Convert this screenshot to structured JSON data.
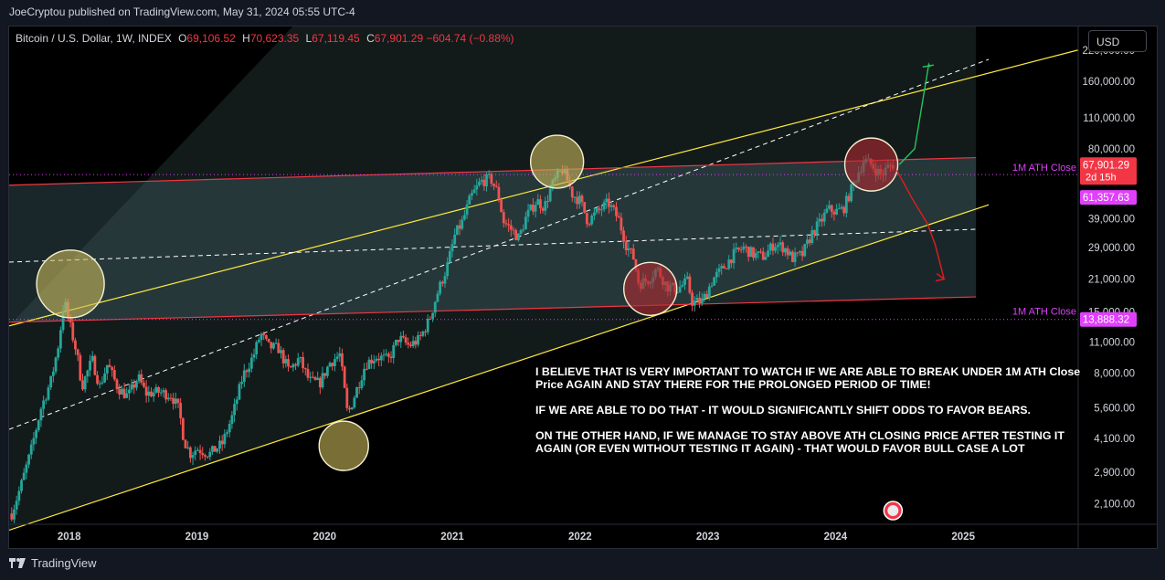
{
  "header": {
    "published_by": "JoeCryptou published on TradingView.com, May 31, 2024 05:55 UTC-4"
  },
  "legend": {
    "symbol": "Bitcoin / U.S. Dollar, 1W, INDEX",
    "o_label": "O",
    "o_value": "69,106.52",
    "h_label": "H",
    "h_value": "70,623.35",
    "l_label": "L",
    "l_value": "67,119.45",
    "c_label": "C",
    "c_value": "67,901.29",
    "change": "−604.74 (−0.88%)"
  },
  "currency_button": "USD",
  "price_tags": {
    "current_price": "67,901.29",
    "countdown": "2d 15h",
    "upper_ath": "61,357.63",
    "lower_ath": "13,888.32"
  },
  "annotation_labels": {
    "upper": "1M ATH Close",
    "lower": "1M ATH Close"
  },
  "note": {
    "para1": "I BELIEVE THAT IS VERY IMPORTANT TO WATCH IF WE ARE ABLE TO BREAK UNDER 1M ATH Close Price AGAIN AND STAY THERE FOR THE PROLONGED PERIOD OF TIME!",
    "para2": "IF WE ARE ABLE TO DO THAT - IT WOULD SIGNIFICANTLY SHIFT ODDS TO FAVOR BEARS.",
    "para3": "ON THE OTHER HAND, IF WE MANAGE TO STAY ABOVE ATH CLOSING PRICE AFTER TESTING IT AGAIN (OR EVEN WITHOUT TESTING IT AGAIN) - THAT WOULD FAVOR BULL CASE A LOT"
  },
  "footer": {
    "brand": "TradingView"
  },
  "colors": {
    "up": "#26a69a",
    "down": "#ef5350",
    "channel": "#ffeb3b",
    "resistance": "#f23645",
    "ath_line": "#e040fb",
    "bull_path": "#22c55e",
    "bear_path": "#e11d1d"
  },
  "chart_data": {
    "type": "candlestick",
    "title": "Bitcoin / U.S. Dollar, 1W, INDEX",
    "scale": "log",
    "ylim": [
      1700,
      280000
    ],
    "y_ticks": [
      "2,100.00",
      "2,900.00",
      "4,100.00",
      "5,600.00",
      "8,000.00",
      "11,000.00",
      "15,000.00",
      "21,000.00",
      "29,000.00",
      "39,000.00",
      "80,000.00",
      "110,000.00",
      "160,000.00",
      "220,000.00"
    ],
    "y_tick_values": [
      2100,
      2900,
      4100,
      5600,
      8000,
      11000,
      15000,
      21000,
      29000,
      39000,
      80000,
      110000,
      160000,
      220000
    ],
    "x_ticks": [
      "2018",
      "2019",
      "2020",
      "2021",
      "2022",
      "2023",
      "2024",
      "2025"
    ],
    "x_tick_values": [
      2018,
      2019,
      2020,
      2021,
      2022,
      2023,
      2024,
      2025
    ],
    "xlim": [
      2017.53,
      2025.9
    ],
    "price_path": [
      [
        2017.55,
        1900
      ],
      [
        2017.62,
        2500
      ],
      [
        2017.7,
        3600
      ],
      [
        2017.78,
        5600
      ],
      [
        2017.86,
        7500
      ],
      [
        2017.92,
        11000
      ],
      [
        2017.96,
        17000
      ],
      [
        2018.0,
        13500
      ],
      [
        2018.06,
        9800
      ],
      [
        2018.1,
        7000
      ],
      [
        2018.18,
        9200
      ],
      [
        2018.24,
        7000
      ],
      [
        2018.3,
        8800
      ],
      [
        2018.38,
        6900
      ],
      [
        2018.46,
        6300
      ],
      [
        2018.54,
        7700
      ],
      [
        2018.6,
        6500
      ],
      [
        2018.7,
        6600
      ],
      [
        2018.8,
        6400
      ],
      [
        2018.86,
        5500
      ],
      [
        2018.9,
        4000
      ],
      [
        2018.95,
        3500
      ],
      [
        2019.0,
        3700
      ],
      [
        2019.1,
        3500
      ],
      [
        2019.2,
        3900
      ],
      [
        2019.28,
        5200
      ],
      [
        2019.36,
        7800
      ],
      [
        2019.44,
        9500
      ],
      [
        2019.5,
        12000
      ],
      [
        2019.56,
        10500
      ],
      [
        2019.64,
        10300
      ],
      [
        2019.72,
        8200
      ],
      [
        2019.8,
        9300
      ],
      [
        2019.88,
        7400
      ],
      [
        2019.96,
        7200
      ],
      [
        2020.04,
        8900
      ],
      [
        2020.12,
        9700
      ],
      [
        2020.18,
        5200
      ],
      [
        2020.24,
        6500
      ],
      [
        2020.32,
        8800
      ],
      [
        2020.4,
        9500
      ],
      [
        2020.5,
        9200
      ],
      [
        2020.58,
        11500
      ],
      [
        2020.66,
        10600
      ],
      [
        2020.74,
        11300
      ],
      [
        2020.82,
        13800
      ],
      [
        2020.88,
        18000
      ],
      [
        2020.96,
        24000
      ],
      [
        2021.02,
        33000
      ],
      [
        2021.08,
        38000
      ],
      [
        2021.14,
        48000
      ],
      [
        2021.22,
        57000
      ],
      [
        2021.3,
        59000
      ],
      [
        2021.36,
        50000
      ],
      [
        2021.4,
        38000
      ],
      [
        2021.46,
        35000
      ],
      [
        2021.52,
        32000
      ],
      [
        2021.58,
        40000
      ],
      [
        2021.66,
        47000
      ],
      [
        2021.72,
        44000
      ],
      [
        2021.78,
        55000
      ],
      [
        2021.86,
        65000
      ],
      [
        2021.9,
        58000
      ],
      [
        2021.94,
        50000
      ],
      [
        2022.0,
        47000
      ],
      [
        2022.06,
        38000
      ],
      [
        2022.14,
        42000
      ],
      [
        2022.22,
        46000
      ],
      [
        2022.3,
        39000
      ],
      [
        2022.36,
        30000
      ],
      [
        2022.42,
        26000
      ],
      [
        2022.46,
        20000
      ],
      [
        2022.54,
        21000
      ],
      [
        2022.6,
        23500
      ],
      [
        2022.68,
        19500
      ],
      [
        2022.76,
        19000
      ],
      [
        2022.84,
        20500
      ],
      [
        2022.88,
        16500
      ],
      [
        2022.96,
        16800
      ],
      [
        2023.04,
        21000
      ],
      [
        2023.12,
        23500
      ],
      [
        2023.2,
        27000
      ],
      [
        2023.28,
        29000
      ],
      [
        2023.36,
        27000
      ],
      [
        2023.44,
        26500
      ],
      [
        2023.52,
        30200
      ],
      [
        2023.6,
        29000
      ],
      [
        2023.66,
        26000
      ],
      [
        2023.74,
        27000
      ],
      [
        2023.82,
        34000
      ],
      [
        2023.88,
        37500
      ],
      [
        2023.94,
        43000
      ],
      [
        2024.0,
        42000
      ],
      [
        2024.06,
        43000
      ],
      [
        2024.12,
        52000
      ],
      [
        2024.18,
        63000
      ],
      [
        2024.22,
        71000
      ],
      [
        2024.28,
        68000
      ],
      [
        2024.32,
        64000
      ],
      [
        2024.36,
        61000
      ],
      [
        2024.42,
        67000
      ],
      [
        2024.45,
        68000
      ]
    ],
    "yellow_channel_lower": [
      [
        2017.53,
        1600
      ],
      [
        2025.2,
        45000
      ]
    ],
    "yellow_channel_upper": [
      [
        2017.53,
        13000
      ],
      [
        2025.9,
        220000
      ]
    ],
    "white_dashed_mid": [
      [
        2017.53,
        4500
      ],
      [
        2025.2,
        200000
      ]
    ],
    "white_dashed_horizontal": [
      [
        2017.53,
        25000
      ],
      [
        2025.1,
        35000
      ]
    ],
    "red_channel_upper": [
      [
        2017.53,
        55000
      ],
      [
        2025.1,
        73000
      ]
    ],
    "red_channel_lower": [
      [
        2017.53,
        13500
      ],
      [
        2025.1,
        17500
      ]
    ],
    "ath_close_upper": 61357.63,
    "ath_close_lower": 13888.32,
    "circles": [
      {
        "x": 2018.01,
        "y": 20000,
        "color": "olive"
      },
      {
        "x": 2021.82,
        "y": 70000,
        "color": "olive"
      },
      {
        "x": 2020.15,
        "y": 3800,
        "color": "olive"
      },
      {
        "x": 2022.55,
        "y": 19000,
        "color": "red"
      },
      {
        "x": 2024.28,
        "y": 68000,
        "color": "red"
      }
    ],
    "bull_projection": [
      [
        2024.5,
        68000
      ],
      [
        2024.62,
        80000
      ],
      [
        2024.7,
        150000
      ],
      [
        2024.73,
        190000
      ],
      [
        2024.74,
        185000
      ]
    ],
    "bear_projection": [
      [
        2024.48,
        64000
      ],
      [
        2024.6,
        48000
      ],
      [
        2024.72,
        37000
      ],
      [
        2024.78,
        30000
      ],
      [
        2024.85,
        21000
      ]
    ]
  }
}
